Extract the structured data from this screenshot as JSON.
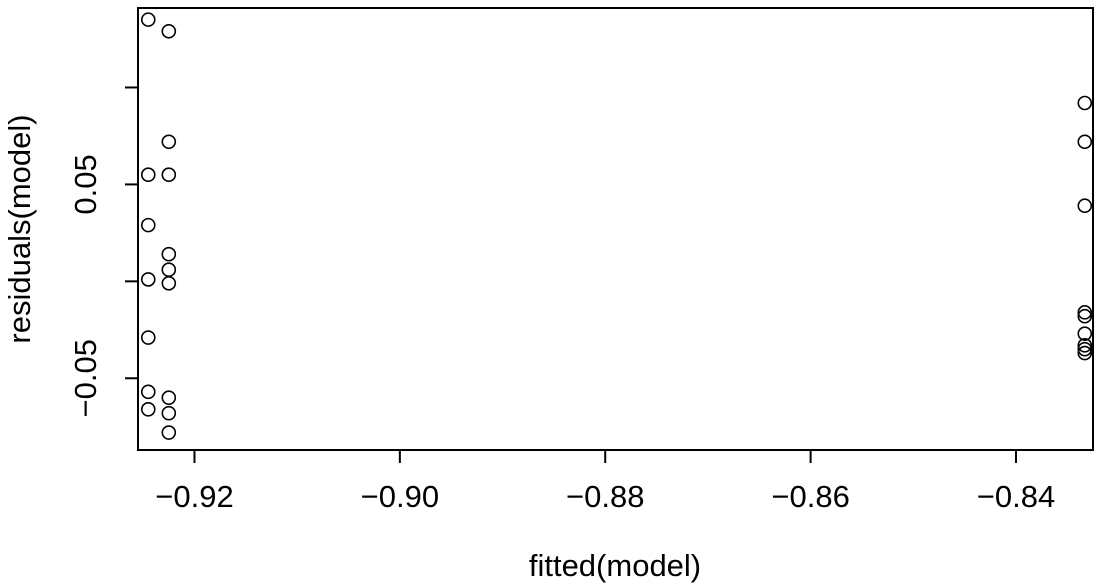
{
  "chart_data": {
    "type": "scatter",
    "title": "",
    "xlabel": "fitted(model)",
    "ylabel": "residuals(model)",
    "xlim": [
      -0.9255,
      -0.8325
    ],
    "ylim": [
      -0.087,
      0.141
    ],
    "grid": false,
    "x_ticks": [
      -0.92,
      -0.9,
      -0.88,
      -0.86,
      -0.84
    ],
    "x_tick_labels": [
      "−0.92",
      "−0.90",
      "−0.88",
      "−0.86",
      "−0.84"
    ],
    "y_ticks": [
      -0.05,
      0.0,
      0.05,
      0.1
    ],
    "y_tick_labels": [
      "−0.05",
      "",
      "0.05",
      ""
    ],
    "points": [
      {
        "x": -0.9245,
        "y": 0.135
      },
      {
        "x": -0.9225,
        "y": 0.129
      },
      {
        "x": -0.9225,
        "y": 0.072
      },
      {
        "x": -0.9245,
        "y": 0.055
      },
      {
        "x": -0.9225,
        "y": 0.055
      },
      {
        "x": -0.9245,
        "y": 0.029
      },
      {
        "x": -0.9225,
        "y": 0.014
      },
      {
        "x": -0.9225,
        "y": 0.006
      },
      {
        "x": -0.9245,
        "y": 0.001
      },
      {
        "x": -0.9225,
        "y": -0.001
      },
      {
        "x": -0.9245,
        "y": -0.029
      },
      {
        "x": -0.9245,
        "y": -0.057
      },
      {
        "x": -0.9225,
        "y": -0.06
      },
      {
        "x": -0.9245,
        "y": -0.066
      },
      {
        "x": -0.9225,
        "y": -0.068
      },
      {
        "x": -0.9225,
        "y": -0.078
      },
      {
        "x": -0.8333,
        "y": 0.092
      },
      {
        "x": -0.8333,
        "y": 0.072
      },
      {
        "x": -0.8333,
        "y": 0.039
      },
      {
        "x": -0.8333,
        "y": -0.016
      },
      {
        "x": -0.8333,
        "y": -0.018
      },
      {
        "x": -0.8333,
        "y": -0.027
      },
      {
        "x": -0.8333,
        "y": -0.033
      },
      {
        "x": -0.8333,
        "y": -0.035
      },
      {
        "x": -0.8333,
        "y": -0.037
      }
    ]
  }
}
